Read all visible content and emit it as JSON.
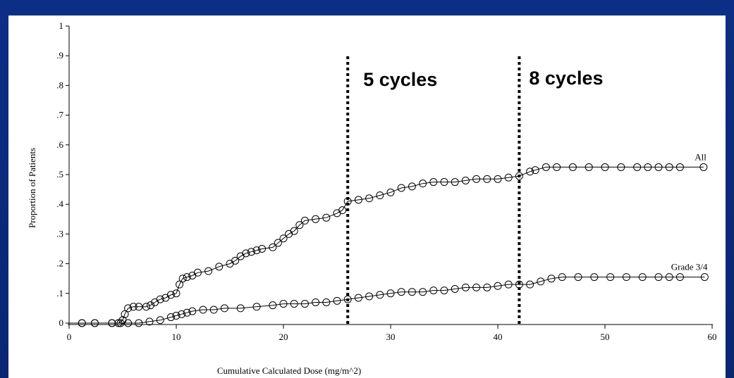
{
  "chart_data": {
    "type": "scatter",
    "xlabel": "Cumulative Calculated Dose (mg/m^2)",
    "ylabel": "Proportion of Patients",
    "xlim": [
      0,
      60
    ],
    "ylim": [
      0,
      1
    ],
    "x_ticks": [
      0,
      10,
      20,
      30,
      40,
      50,
      60
    ],
    "x_tick_labels": [
      "0",
      "10",
      "20",
      "30",
      "40",
      "50",
      "60"
    ],
    "y_ticks": [
      0,
      0.1,
      0.2,
      0.3,
      0.4,
      0.5,
      0.6,
      0.7,
      0.8,
      0.9,
      1
    ],
    "y_tick_labels": [
      "0",
      ".1",
      ".2",
      ".3",
      ".4",
      ".5",
      ".6",
      ".7",
      ".8",
      ".9",
      "1"
    ],
    "grid": false,
    "legend": "none",
    "marker": "open-circle",
    "annotations": [
      {
        "x": 26,
        "label": "5 cycles",
        "style": "dotted-vertical-line"
      },
      {
        "x": 42,
        "label": "8 cycles",
        "style": "dotted-vertical-line"
      }
    ],
    "series": [
      {
        "name": "All",
        "points": [
          [
            1.2,
            0
          ],
          [
            2.4,
            0
          ],
          [
            4.0,
            0
          ],
          [
            4.6,
            0
          ],
          [
            5.0,
            0.01
          ],
          [
            5.2,
            0.03
          ],
          [
            5.5,
            0.05
          ],
          [
            6.0,
            0.055
          ],
          [
            6.5,
            0.055
          ],
          [
            7.2,
            0.055
          ],
          [
            7.6,
            0.06
          ],
          [
            8.0,
            0.07
          ],
          [
            8.5,
            0.08
          ],
          [
            9.0,
            0.085
          ],
          [
            9.5,
            0.095
          ],
          [
            10.0,
            0.1
          ],
          [
            10.3,
            0.13
          ],
          [
            10.6,
            0.15
          ],
          [
            11.0,
            0.155
          ],
          [
            11.5,
            0.16
          ],
          [
            12.0,
            0.17
          ],
          [
            13.0,
            0.175
          ],
          [
            14.0,
            0.19
          ],
          [
            15.0,
            0.2
          ],
          [
            15.5,
            0.21
          ],
          [
            16.0,
            0.225
          ],
          [
            16.5,
            0.235
          ],
          [
            17.0,
            0.24
          ],
          [
            17.5,
            0.245
          ],
          [
            18.0,
            0.25
          ],
          [
            19.0,
            0.255
          ],
          [
            19.5,
            0.27
          ],
          [
            20.0,
            0.285
          ],
          [
            20.5,
            0.3
          ],
          [
            21.0,
            0.31
          ],
          [
            21.5,
            0.33
          ],
          [
            22.0,
            0.345
          ],
          [
            23.0,
            0.35
          ],
          [
            24.0,
            0.355
          ],
          [
            25.0,
            0.37
          ],
          [
            25.5,
            0.38
          ],
          [
            26.0,
            0.41
          ],
          [
            27.0,
            0.415
          ],
          [
            28.0,
            0.42
          ],
          [
            29.0,
            0.43
          ],
          [
            30.0,
            0.44
          ],
          [
            31.0,
            0.455
          ],
          [
            32.0,
            0.46
          ],
          [
            33.0,
            0.47
          ],
          [
            34.0,
            0.475
          ],
          [
            35.0,
            0.475
          ],
          [
            36.0,
            0.475
          ],
          [
            37.0,
            0.48
          ],
          [
            38.0,
            0.485
          ],
          [
            39.0,
            0.485
          ],
          [
            40.0,
            0.485
          ],
          [
            41.0,
            0.49
          ],
          [
            42.0,
            0.495
          ],
          [
            43.0,
            0.51
          ],
          [
            43.5,
            0.515
          ],
          [
            44.5,
            0.525
          ],
          [
            45.5,
            0.525
          ],
          [
            47.0,
            0.525
          ],
          [
            48.5,
            0.525
          ],
          [
            50.0,
            0.525
          ],
          [
            51.5,
            0.525
          ],
          [
            53.0,
            0.525
          ],
          [
            54.0,
            0.525
          ],
          [
            55.0,
            0.525
          ],
          [
            56.0,
            0.525
          ],
          [
            57.0,
            0.525
          ],
          [
            59.2,
            0.525
          ]
        ]
      },
      {
        "name": "Grade 3/4",
        "points": [
          [
            1.2,
            0
          ],
          [
            2.4,
            0
          ],
          [
            4.0,
            0
          ],
          [
            4.8,
            0
          ],
          [
            5.5,
            0
          ],
          [
            6.5,
            0
          ],
          [
            7.5,
            0.005
          ],
          [
            8.5,
            0.01
          ],
          [
            9.5,
            0.02
          ],
          [
            10.0,
            0.025
          ],
          [
            10.5,
            0.03
          ],
          [
            11.0,
            0.035
          ],
          [
            11.5,
            0.04
          ],
          [
            12.5,
            0.045
          ],
          [
            13.5,
            0.045
          ],
          [
            14.5,
            0.05
          ],
          [
            16.0,
            0.05
          ],
          [
            17.5,
            0.055
          ],
          [
            19.0,
            0.06
          ],
          [
            20.0,
            0.065
          ],
          [
            21.0,
            0.065
          ],
          [
            22.0,
            0.065
          ],
          [
            23.0,
            0.07
          ],
          [
            24.0,
            0.07
          ],
          [
            25.0,
            0.075
          ],
          [
            26.0,
            0.08
          ],
          [
            27.0,
            0.085
          ],
          [
            28.0,
            0.09
          ],
          [
            29.0,
            0.095
          ],
          [
            30.0,
            0.1
          ],
          [
            31.0,
            0.105
          ],
          [
            32.0,
            0.105
          ],
          [
            33.0,
            0.105
          ],
          [
            34.0,
            0.11
          ],
          [
            35.0,
            0.11
          ],
          [
            36.0,
            0.115
          ],
          [
            37.0,
            0.12
          ],
          [
            38.0,
            0.12
          ],
          [
            39.0,
            0.12
          ],
          [
            40.0,
            0.125
          ],
          [
            41.0,
            0.13
          ],
          [
            42.0,
            0.13
          ],
          [
            43.0,
            0.13
          ],
          [
            44.0,
            0.14
          ],
          [
            45.0,
            0.15
          ],
          [
            46.0,
            0.155
          ],
          [
            47.5,
            0.155
          ],
          [
            49.0,
            0.155
          ],
          [
            50.5,
            0.155
          ],
          [
            52.0,
            0.155
          ],
          [
            53.5,
            0.155
          ],
          [
            55.0,
            0.155
          ],
          [
            56.0,
            0.155
          ],
          [
            57.0,
            0.155
          ],
          [
            59.3,
            0.155
          ]
        ]
      }
    ]
  }
}
